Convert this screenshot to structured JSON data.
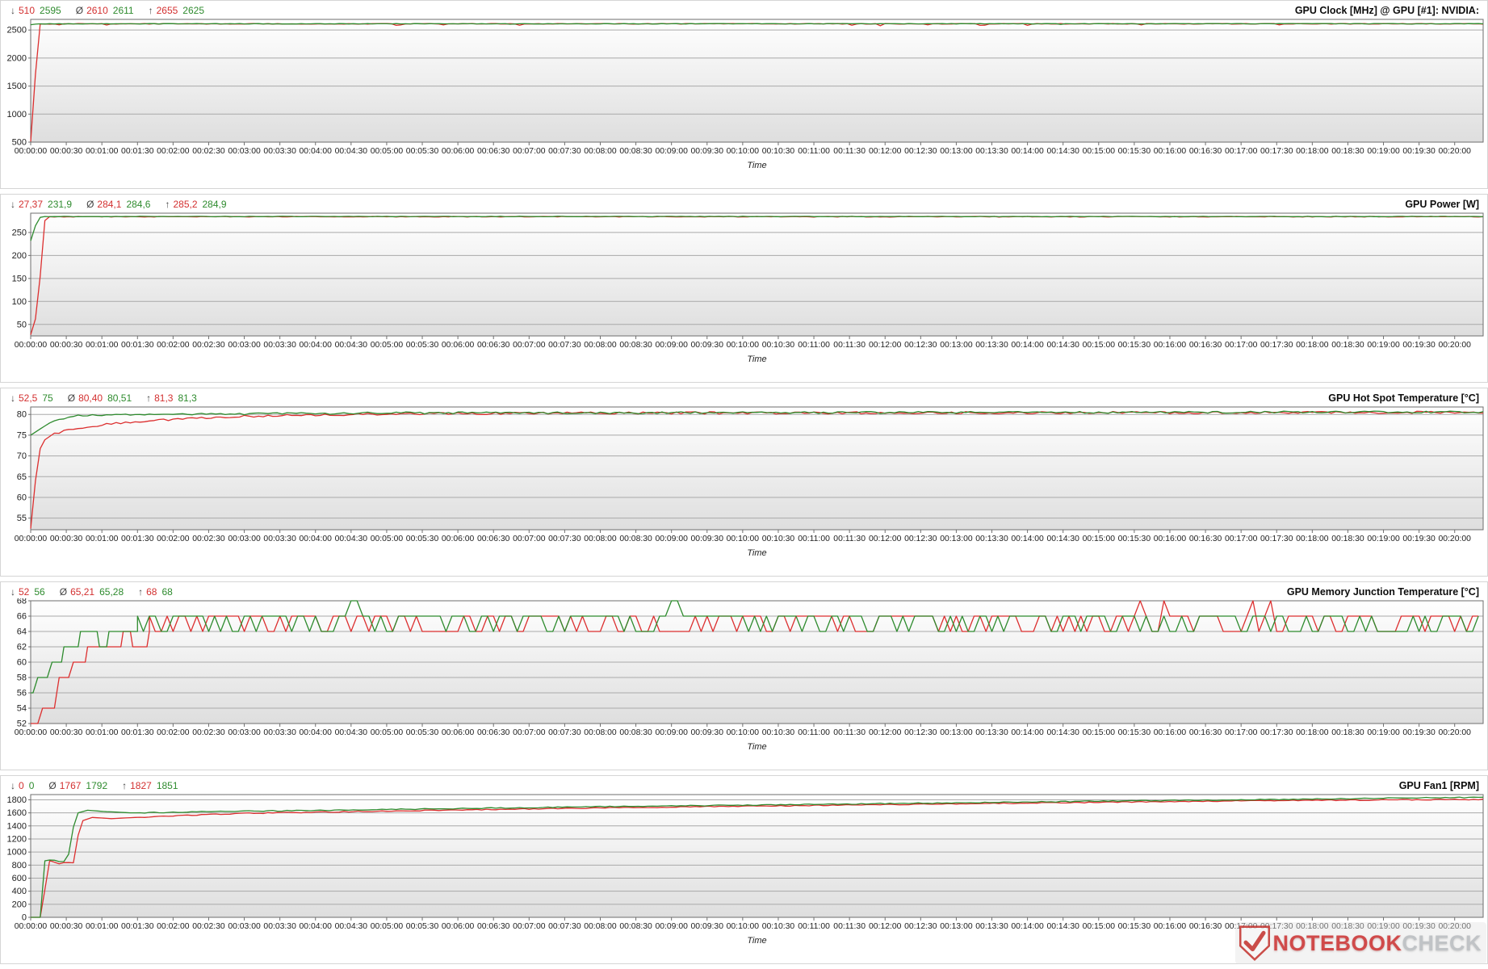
{
  "stat_symbols": {
    "min": "↓",
    "avg": "Ø",
    "max": "↑"
  },
  "colors": {
    "red": "#dc2f2f",
    "green": "#2e8b2e",
    "grid": "#a9a9a9",
    "axis": "#6e6e6e",
    "tick_text": "#222222",
    "plot_bg_top": "#ffffff",
    "plot_bg_bottom": "#dedede"
  },
  "time_axis": {
    "label": "Time",
    "t_max": 1224,
    "tick_interval_s": 30,
    "ticks": [
      "00:00:00",
      "00:00:30",
      "00:01:00",
      "00:01:30",
      "00:02:00",
      "00:02:30",
      "00:03:00",
      "00:03:30",
      "00:04:00",
      "00:04:30",
      "00:05:00",
      "00:05:30",
      "00:06:00",
      "00:06:30",
      "00:07:00",
      "00:07:30",
      "00:08:00",
      "00:08:30",
      "00:09:00",
      "00:09:30",
      "00:10:00",
      "00:10:30",
      "00:11:00",
      "00:11:30",
      "00:12:00",
      "00:12:30",
      "00:13:00",
      "00:13:30",
      "00:14:00",
      "00:14:30",
      "00:15:00",
      "00:15:30",
      "00:16:00",
      "00:16:30",
      "00:17:00",
      "00:17:30",
      "00:18:00",
      "00:18:30",
      "00:19:00",
      "00:19:30",
      "00:20:00"
    ]
  },
  "watermark": {
    "notebook": "NOTEBOOK",
    "check": "CHECK"
  },
  "chart_data": [
    {
      "type": "line",
      "title": "GPU Clock [MHz] @ GPU [#1]: NVIDIA:",
      "stats": {
        "min": [
          "510",
          "2595"
        ],
        "avg": [
          "2610",
          "2611"
        ],
        "max": [
          "2655",
          "2625"
        ]
      },
      "y_ticks": [
        500,
        1000,
        1500,
        2000,
        2500
      ],
      "ylim": [
        500,
        2690
      ],
      "series": [
        {
          "name": "min-max-red",
          "color_key": "red",
          "seed": 101,
          "sample_step": 4,
          "jitter": 5,
          "jitter_after": 14,
          "dip_chance": 0.055,
          "dip_depth": 32,
          "keypoints": [
            [
              0,
              510
            ],
            [
              7,
              2608
            ],
            [
              30,
              2611
            ],
            [
              1224,
              2611
            ]
          ]
        },
        {
          "name": "avg-green",
          "color_key": "green",
          "seed": 202,
          "sample_step": 4,
          "jitter": 4,
          "jitter_after": 10,
          "dip_chance": 0.015,
          "dip_depth": 12,
          "keypoints": [
            [
              0,
              2595
            ],
            [
              6,
              2611
            ],
            [
              1224,
              2613
            ]
          ]
        }
      ]
    },
    {
      "type": "line",
      "title": "GPU Power [W]",
      "stats": {
        "min": [
          "27,37",
          "231,9"
        ],
        "avg": [
          "284,1",
          "284,6"
        ],
        "max": [
          "285,2",
          "284,9"
        ]
      },
      "y_ticks": [
        50,
        100,
        150,
        200,
        250
      ],
      "ylim": [
        25,
        292
      ],
      "series": [
        {
          "name": "power-red",
          "color_key": "red",
          "seed": 303,
          "sample_step": 4,
          "jitter": 0.7,
          "jitter_after": 20,
          "keypoints": [
            [
              0,
              27.4
            ],
            [
              4,
              62
            ],
            [
              8,
              155
            ],
            [
              12,
              276
            ],
            [
              16,
              284.4
            ],
            [
              1224,
              284.3
            ]
          ]
        },
        {
          "name": "power-green",
          "color_key": "green",
          "seed": 404,
          "sample_step": 4,
          "jitter": 0.5,
          "jitter_after": 14,
          "keypoints": [
            [
              0,
              231.9
            ],
            [
              6,
              281
            ],
            [
              10,
              284.8
            ],
            [
              1224,
              284.7
            ]
          ]
        }
      ]
    },
    {
      "type": "line",
      "title": "GPU Hot Spot Temperature [°C]",
      "stats": {
        "min": [
          "52,5",
          "75"
        ],
        "avg": [
          "80,40",
          "80,51"
        ],
        "max": [
          "81,3",
          "81,3"
        ]
      },
      "y_ticks": [
        55,
        60,
        65,
        70,
        75,
        80
      ],
      "ylim": [
        52.2,
        81.8
      ],
      "series": [
        {
          "name": "hotspot-red",
          "color_key": "red",
          "seed": 505,
          "sample_step": 4,
          "jitter": 0.28,
          "jitter_after": 22,
          "keypoints": [
            [
              0,
              52.5
            ],
            [
              3,
              61
            ],
            [
              6,
              70
            ],
            [
              10,
              73.5
            ],
            [
              20,
              75.5
            ],
            [
              40,
              76.6
            ],
            [
              70,
              77.8
            ],
            [
              110,
              78.6
            ],
            [
              150,
              79.3
            ],
            [
              210,
              79.8
            ],
            [
              300,
              80.15
            ],
            [
              500,
              80.35
            ],
            [
              1224,
              80.5
            ]
          ]
        },
        {
          "name": "hotspot-green",
          "color_key": "green",
          "seed": 606,
          "sample_step": 4,
          "jitter": 0.24,
          "jitter_after": 26,
          "keypoints": [
            [
              0,
              75
            ],
            [
              8,
              76.5
            ],
            [
              18,
              78.3
            ],
            [
              30,
              79.3
            ],
            [
              45,
              79.8
            ],
            [
              70,
              79.9
            ],
            [
              120,
              80.0
            ],
            [
              300,
              80.35
            ],
            [
              1224,
              80.6
            ]
          ]
        }
      ]
    },
    {
      "type": "line",
      "title": "GPU Memory Junction Temperature [°C]",
      "stats": {
        "min": [
          "52",
          "56"
        ],
        "avg": [
          "65,21",
          "65,28"
        ],
        "max": [
          "68",
          "68"
        ]
      },
      "y_ticks": [
        52,
        54,
        56,
        58,
        60,
        62,
        64,
        66,
        68
      ],
      "ylim": [
        52,
        68
      ],
      "series": [
        {
          "name": "memjnc-red",
          "color_key": "red",
          "seed": 707,
          "sample_step": 2,
          "jitter": 0,
          "keypoints": [
            [
              0,
              52
            ],
            [
              7,
              52
            ],
            [
              9,
              54
            ],
            [
              21,
              54
            ],
            [
              23,
              58
            ],
            [
              33,
              58
            ],
            [
              35,
              60
            ],
            [
              46,
              60
            ],
            [
              48,
              62
            ],
            [
              76,
              62
            ],
            [
              78,
              64
            ],
            [
              84,
              64
            ],
            [
              86,
              62
            ],
            [
              98,
              62
            ],
            [
              100,
              64
            ]
          ],
          "oscillation": {
            "start": 100,
            "step": 5,
            "low": 64,
            "high": 66,
            "high_prob": 0.6,
            "spikes": [
              935,
              955,
              1030,
              1045
            ],
            "spike_value": 68
          }
        },
        {
          "name": "memjnc-green",
          "color_key": "green",
          "seed": 808,
          "sample_step": 2,
          "jitter": 0,
          "keypoints": [
            [
              0,
              56
            ],
            [
              3,
              56
            ],
            [
              5,
              58
            ],
            [
              15,
              58
            ],
            [
              17,
              60
            ],
            [
              26,
              60
            ],
            [
              28,
              62
            ],
            [
              40,
              62
            ],
            [
              42,
              64
            ],
            [
              56,
              64
            ],
            [
              58,
              62
            ],
            [
              64,
              62
            ],
            [
              66,
              64
            ],
            [
              90,
              64
            ]
          ],
          "oscillation": {
            "start": 90,
            "step": 5,
            "low": 64,
            "high": 66,
            "high_prob": 0.62,
            "spikes": [
              272,
              541
            ],
            "spike_value": 68
          }
        }
      ]
    },
    {
      "type": "line",
      "title": "GPU Fan1 [RPM]",
      "stats": {
        "min": [
          "0",
          "0"
        ],
        "avg": [
          "1767",
          "1792"
        ],
        "max": [
          "1827",
          "1851"
        ]
      },
      "y_ticks": [
        0,
        200,
        400,
        600,
        800,
        1000,
        1200,
        1400,
        1600,
        1800
      ],
      "ylim": [
        0,
        1880
      ],
      "series": [
        {
          "name": "fan-red",
          "color_key": "red",
          "seed": 909,
          "sample_step": 4,
          "jitter": 7,
          "jitter_after": 95,
          "keypoints": [
            [
              0,
              0
            ],
            [
              11,
              0
            ],
            [
              13,
              850
            ],
            [
              17,
              875
            ],
            [
              23,
              815
            ],
            [
              29,
              842
            ],
            [
              36,
              835
            ],
            [
              42,
              1470
            ],
            [
              52,
              1530
            ],
            [
              68,
              1512
            ],
            [
              82,
              1525
            ],
            [
              120,
              1555
            ],
            [
              180,
              1592
            ],
            [
              300,
              1628
            ],
            [
              450,
              1668
            ],
            [
              600,
              1702
            ],
            [
              750,
              1732
            ],
            [
              900,
              1762
            ],
            [
              1050,
              1788
            ],
            [
              1150,
              1800
            ],
            [
              1224,
              1806
            ]
          ]
        },
        {
          "name": "fan-green",
          "color_key": "green",
          "seed": 111,
          "sample_step": 4,
          "jitter": 7,
          "jitter_after": 95,
          "keypoints": [
            [
              0,
              0
            ],
            [
              9,
              0
            ],
            [
              11,
              862
            ],
            [
              18,
              885
            ],
            [
              25,
              848
            ],
            [
              31,
              862
            ],
            [
              38,
              1590
            ],
            [
              48,
              1640
            ],
            [
              62,
              1620
            ],
            [
              85,
              1600
            ],
            [
              150,
              1618
            ],
            [
              300,
              1652
            ],
            [
              450,
              1688
            ],
            [
              600,
              1718
            ],
            [
              750,
              1748
            ],
            [
              900,
              1778
            ],
            [
              1050,
              1806
            ],
            [
              1150,
              1826
            ],
            [
              1224,
              1838
            ]
          ]
        }
      ]
    }
  ]
}
